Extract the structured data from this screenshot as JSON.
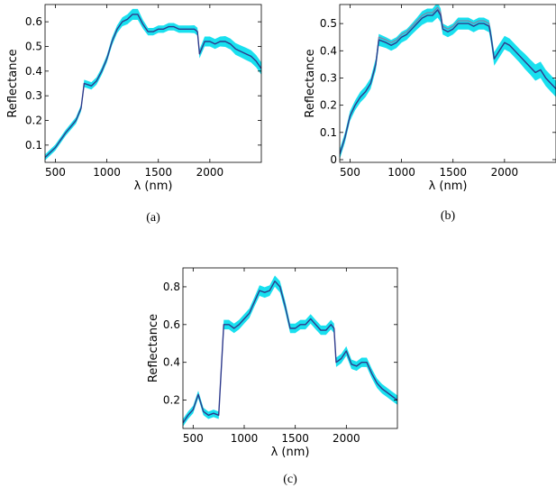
{
  "chart_data": [
    {
      "type": "line",
      "caption": "(a)",
      "xlabel": "λ (nm)",
      "ylabel": "Reflectance",
      "xlim": [
        400,
        2500
      ],
      "ylim": [
        0.03,
        0.67
      ],
      "xticks": [
        "500",
        "1000",
        "1500",
        "2000"
      ],
      "yticks": [
        "0.1",
        "0.2",
        "0.3",
        "0.4",
        "0.5",
        "0.6"
      ],
      "series": [
        {
          "color": "#2e3a8c",
          "band_color": "#19e0ef",
          "x": [
            400,
            500,
            600,
            700,
            750,
            780,
            850,
            900,
            950,
            1000,
            1050,
            1100,
            1150,
            1200,
            1250,
            1300,
            1350,
            1400,
            1450,
            1500,
            1550,
            1600,
            1650,
            1700,
            1750,
            1800,
            1850,
            1880,
            1900,
            1950,
            2000,
            2050,
            2100,
            2150,
            2200,
            2250,
            2300,
            2350,
            2400,
            2450,
            2500
          ],
          "y": [
            0.05,
            0.09,
            0.15,
            0.2,
            0.25,
            0.35,
            0.34,
            0.36,
            0.4,
            0.45,
            0.52,
            0.57,
            0.6,
            0.61,
            0.63,
            0.63,
            0.59,
            0.56,
            0.56,
            0.57,
            0.57,
            0.58,
            0.58,
            0.57,
            0.57,
            0.57,
            0.57,
            0.56,
            0.47,
            0.52,
            0.52,
            0.51,
            0.52,
            0.52,
            0.51,
            0.49,
            0.48,
            0.47,
            0.46,
            0.44,
            0.41
          ],
          "band": [
            0.012,
            0.012,
            0.012,
            0.013,
            0.013,
            0.015,
            0.015,
            0.015,
            0.015,
            0.015,
            0.016,
            0.016,
            0.018,
            0.02,
            0.022,
            0.022,
            0.018,
            0.015,
            0.015,
            0.015,
            0.015,
            0.015,
            0.015,
            0.015,
            0.015,
            0.015,
            0.016,
            0.016,
            0.018,
            0.02,
            0.02,
            0.02,
            0.02,
            0.022,
            0.022,
            0.024,
            0.024,
            0.025,
            0.025,
            0.025,
            0.025
          ]
        }
      ]
    },
    {
      "type": "line",
      "caption": "(b)",
      "xlabel": "λ (nm)",
      "ylabel": "Reflectance",
      "xlim": [
        400,
        2500
      ],
      "ylim": [
        -0.01,
        0.57
      ],
      "xticks": [
        "500",
        "1000",
        "1500",
        "2000"
      ],
      "yticks": [
        "0",
        "0.1",
        "0.2",
        "0.3",
        "0.4",
        "0.5"
      ],
      "series": [
        {
          "color": "#2e3a8c",
          "band_color": "#19e0ef",
          "x": [
            400,
            450,
            500,
            550,
            600,
            650,
            700,
            750,
            780,
            850,
            900,
            950,
            1000,
            1050,
            1100,
            1150,
            1200,
            1250,
            1300,
            1350,
            1380,
            1400,
            1450,
            1500,
            1550,
            1600,
            1650,
            1700,
            1750,
            1800,
            1850,
            1870,
            1900,
            1950,
            2000,
            2050,
            2100,
            2150,
            2200,
            2250,
            2300,
            2350,
            2400,
            2450,
            2500
          ],
          "y": [
            0.02,
            0.08,
            0.16,
            0.2,
            0.23,
            0.25,
            0.28,
            0.35,
            0.44,
            0.43,
            0.42,
            0.43,
            0.45,
            0.46,
            0.48,
            0.5,
            0.52,
            0.53,
            0.53,
            0.55,
            0.53,
            0.48,
            0.47,
            0.48,
            0.5,
            0.5,
            0.5,
            0.49,
            0.5,
            0.5,
            0.49,
            0.45,
            0.37,
            0.4,
            0.43,
            0.42,
            0.4,
            0.38,
            0.36,
            0.34,
            0.32,
            0.33,
            0.3,
            0.28,
            0.26
          ]
        },
        {
          "color": "#8a7aa0",
          "x": [
            400,
            450,
            500,
            550,
            600,
            650,
            700,
            750,
            780,
            850,
            900,
            950,
            1000,
            1050,
            1100,
            1150,
            1200,
            1250,
            1300,
            1350,
            1380,
            1400,
            1450,
            1500,
            1550,
            1600,
            1650,
            1700,
            1750,
            1800,
            1850,
            1870,
            1900,
            1950,
            2000,
            2050,
            2100,
            2150,
            2200,
            2250,
            2300,
            2350,
            2400,
            2450,
            2500
          ],
          "y": [
            0.02,
            0.08,
            0.16,
            0.2,
            0.23,
            0.25,
            0.28,
            0.35,
            0.45,
            0.44,
            0.43,
            0.44,
            0.46,
            0.47,
            0.49,
            0.51,
            0.53,
            0.54,
            0.54,
            0.56,
            0.54,
            0.49,
            0.48,
            0.49,
            0.51,
            0.51,
            0.51,
            0.5,
            0.51,
            0.51,
            0.5,
            0.45,
            0.37,
            0.4,
            0.43,
            0.42,
            0.4,
            0.38,
            0.36,
            0.34,
            0.32,
            0.33,
            0.3,
            0.28,
            0.26
          ]
        }
      ],
      "band": [
        0.018,
        0.018,
        0.018,
        0.018,
        0.02,
        0.02,
        0.02,
        0.022,
        0.022,
        0.02,
        0.02,
        0.02,
        0.02,
        0.02,
        0.02,
        0.022,
        0.025,
        0.025,
        0.025,
        0.028,
        0.025,
        0.02,
        0.02,
        0.02,
        0.022,
        0.022,
        0.022,
        0.022,
        0.022,
        0.022,
        0.022,
        0.025,
        0.025,
        0.025,
        0.025,
        0.025,
        0.025,
        0.025,
        0.028,
        0.028,
        0.03,
        0.03,
        0.03,
        0.03,
        0.03
      ]
    },
    {
      "type": "line",
      "caption": "(c)",
      "xlabel": "λ (nm)",
      "ylabel": "Reflectance",
      "xlim": [
        400,
        2500
      ],
      "ylim": [
        0.05,
        0.9
      ],
      "xticks": [
        "500",
        "1000",
        "1500",
        "2000"
      ],
      "yticks": [
        "0.2",
        "0.4",
        "0.6",
        "0.8"
      ],
      "series": [
        {
          "color": "#2e3a8c",
          "band_color": "#19e0ef",
          "x": [
            400,
            450,
            500,
            550,
            600,
            650,
            700,
            750,
            800,
            850,
            900,
            950,
            1000,
            1050,
            1100,
            1150,
            1200,
            1250,
            1300,
            1350,
            1400,
            1450,
            1500,
            1550,
            1600,
            1650,
            1700,
            1750,
            1800,
            1850,
            1880,
            1900,
            1950,
            2000,
            2050,
            2100,
            2150,
            2200,
            2250,
            2300,
            2350,
            2400,
            2450,
            2500
          ],
          "y": [
            0.08,
            0.12,
            0.15,
            0.23,
            0.14,
            0.12,
            0.13,
            0.12,
            0.6,
            0.6,
            0.58,
            0.6,
            0.63,
            0.66,
            0.72,
            0.78,
            0.77,
            0.78,
            0.83,
            0.8,
            0.7,
            0.58,
            0.58,
            0.6,
            0.6,
            0.63,
            0.6,
            0.57,
            0.57,
            0.6,
            0.58,
            0.4,
            0.42,
            0.46,
            0.39,
            0.38,
            0.4,
            0.4,
            0.34,
            0.29,
            0.26,
            0.24,
            0.22,
            0.2
          ],
          "band": [
            0.02,
            0.02,
            0.02,
            0.02,
            0.02,
            0.02,
            0.02,
            0.02,
            0.025,
            0.025,
            0.025,
            0.025,
            0.025,
            0.025,
            0.025,
            0.028,
            0.028,
            0.028,
            0.03,
            0.03,
            0.028,
            0.025,
            0.025,
            0.025,
            0.025,
            0.025,
            0.025,
            0.025,
            0.025,
            0.025,
            0.025,
            0.025,
            0.025,
            0.025,
            0.025,
            0.025,
            0.025,
            0.025,
            0.025,
            0.025,
            0.025,
            0.025,
            0.025,
            0.025
          ]
        }
      ]
    }
  ]
}
